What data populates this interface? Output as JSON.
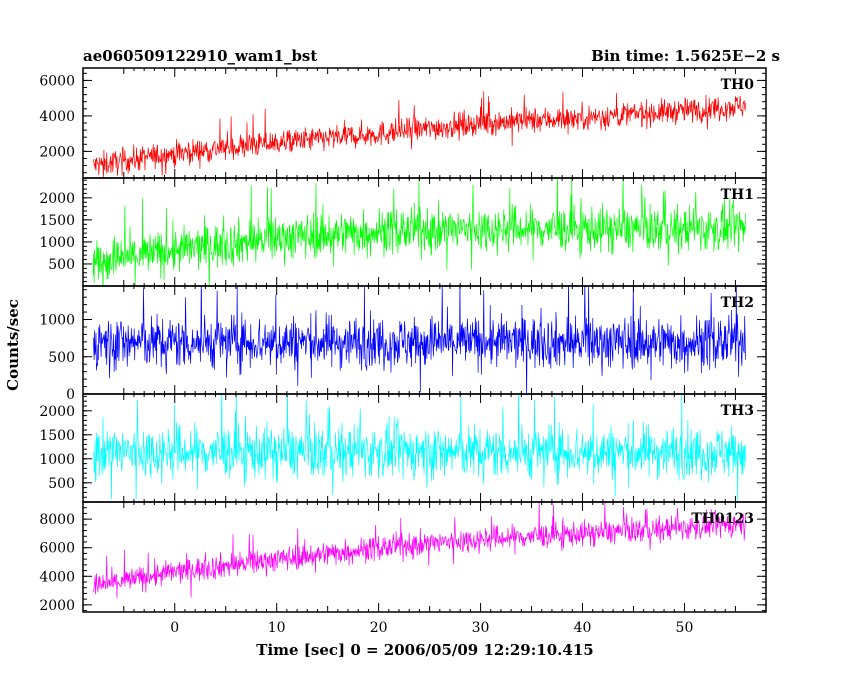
{
  "header": {
    "title": "ae060509122910_wam1_bst",
    "bin_time": "Bin time: 1.5625E−2 s"
  },
  "chart_data": {
    "type": "line",
    "title": "ae060509122910_wam1_bst",
    "subtitle": "Bin time: 1.5625E−2 s",
    "xlabel": "Time [sec] 0 = 2006/05/09 12:29:10.415",
    "ylabel": "Counts/sec",
    "xlim": [
      -9,
      58
    ],
    "x_ticks": [
      0,
      10,
      20,
      30,
      40,
      50
    ],
    "x_start": -8,
    "x_end": 56,
    "grid": false,
    "panels": [
      {
        "name": "TH0",
        "color": "#ff0000",
        "ylim": [
          500,
          6700
        ],
        "yticks": [
          2000,
          4000,
          6000
        ],
        "trend": [
          [
            -8,
            1200
          ],
          [
            0,
            1900
          ],
          [
            10,
            2500
          ],
          [
            20,
            3000
          ],
          [
            30,
            3600
          ],
          [
            40,
            3900
          ],
          [
            50,
            4300
          ],
          [
            56,
            4600
          ]
        ],
        "spread": 900
      },
      {
        "name": "TH1",
        "color": "#00ff00",
        "ylim": [
          0,
          2450
        ],
        "yticks": [
          500,
          1000,
          1500,
          2000
        ],
        "trend": [
          [
            -8,
            550
          ],
          [
            0,
            800
          ],
          [
            10,
            1100
          ],
          [
            20,
            1250
          ],
          [
            30,
            1300
          ],
          [
            40,
            1300
          ],
          [
            50,
            1300
          ],
          [
            56,
            1300
          ]
        ],
        "spread": 650
      },
      {
        "name": "TH2",
        "color": "#0000ff",
        "ylim": [
          0,
          1450
        ],
        "yticks": [
          0,
          500,
          1000
        ],
        "trend": [
          [
            -8,
            700
          ],
          [
            56,
            700
          ]
        ],
        "spread": 450
      },
      {
        "name": "TH3",
        "color": "#00ffff",
        "ylim": [
          100,
          2350
        ],
        "yticks": [
          500,
          1000,
          1500,
          2000
        ],
        "trend": [
          [
            -8,
            1150
          ],
          [
            56,
            1150
          ]
        ],
        "spread": 700
      },
      {
        "name": "TH0123",
        "color": "#ff00ff",
        "ylim": [
          1500,
          9200
        ],
        "yticks": [
          2000,
          4000,
          6000,
          8000
        ],
        "trend": [
          [
            -8,
            3300
          ],
          [
            0,
            4300
          ],
          [
            10,
            5200
          ],
          [
            20,
            6000
          ],
          [
            30,
            6600
          ],
          [
            40,
            7000
          ],
          [
            50,
            7400
          ],
          [
            56,
            7700
          ]
        ],
        "spread": 1100
      }
    ]
  }
}
